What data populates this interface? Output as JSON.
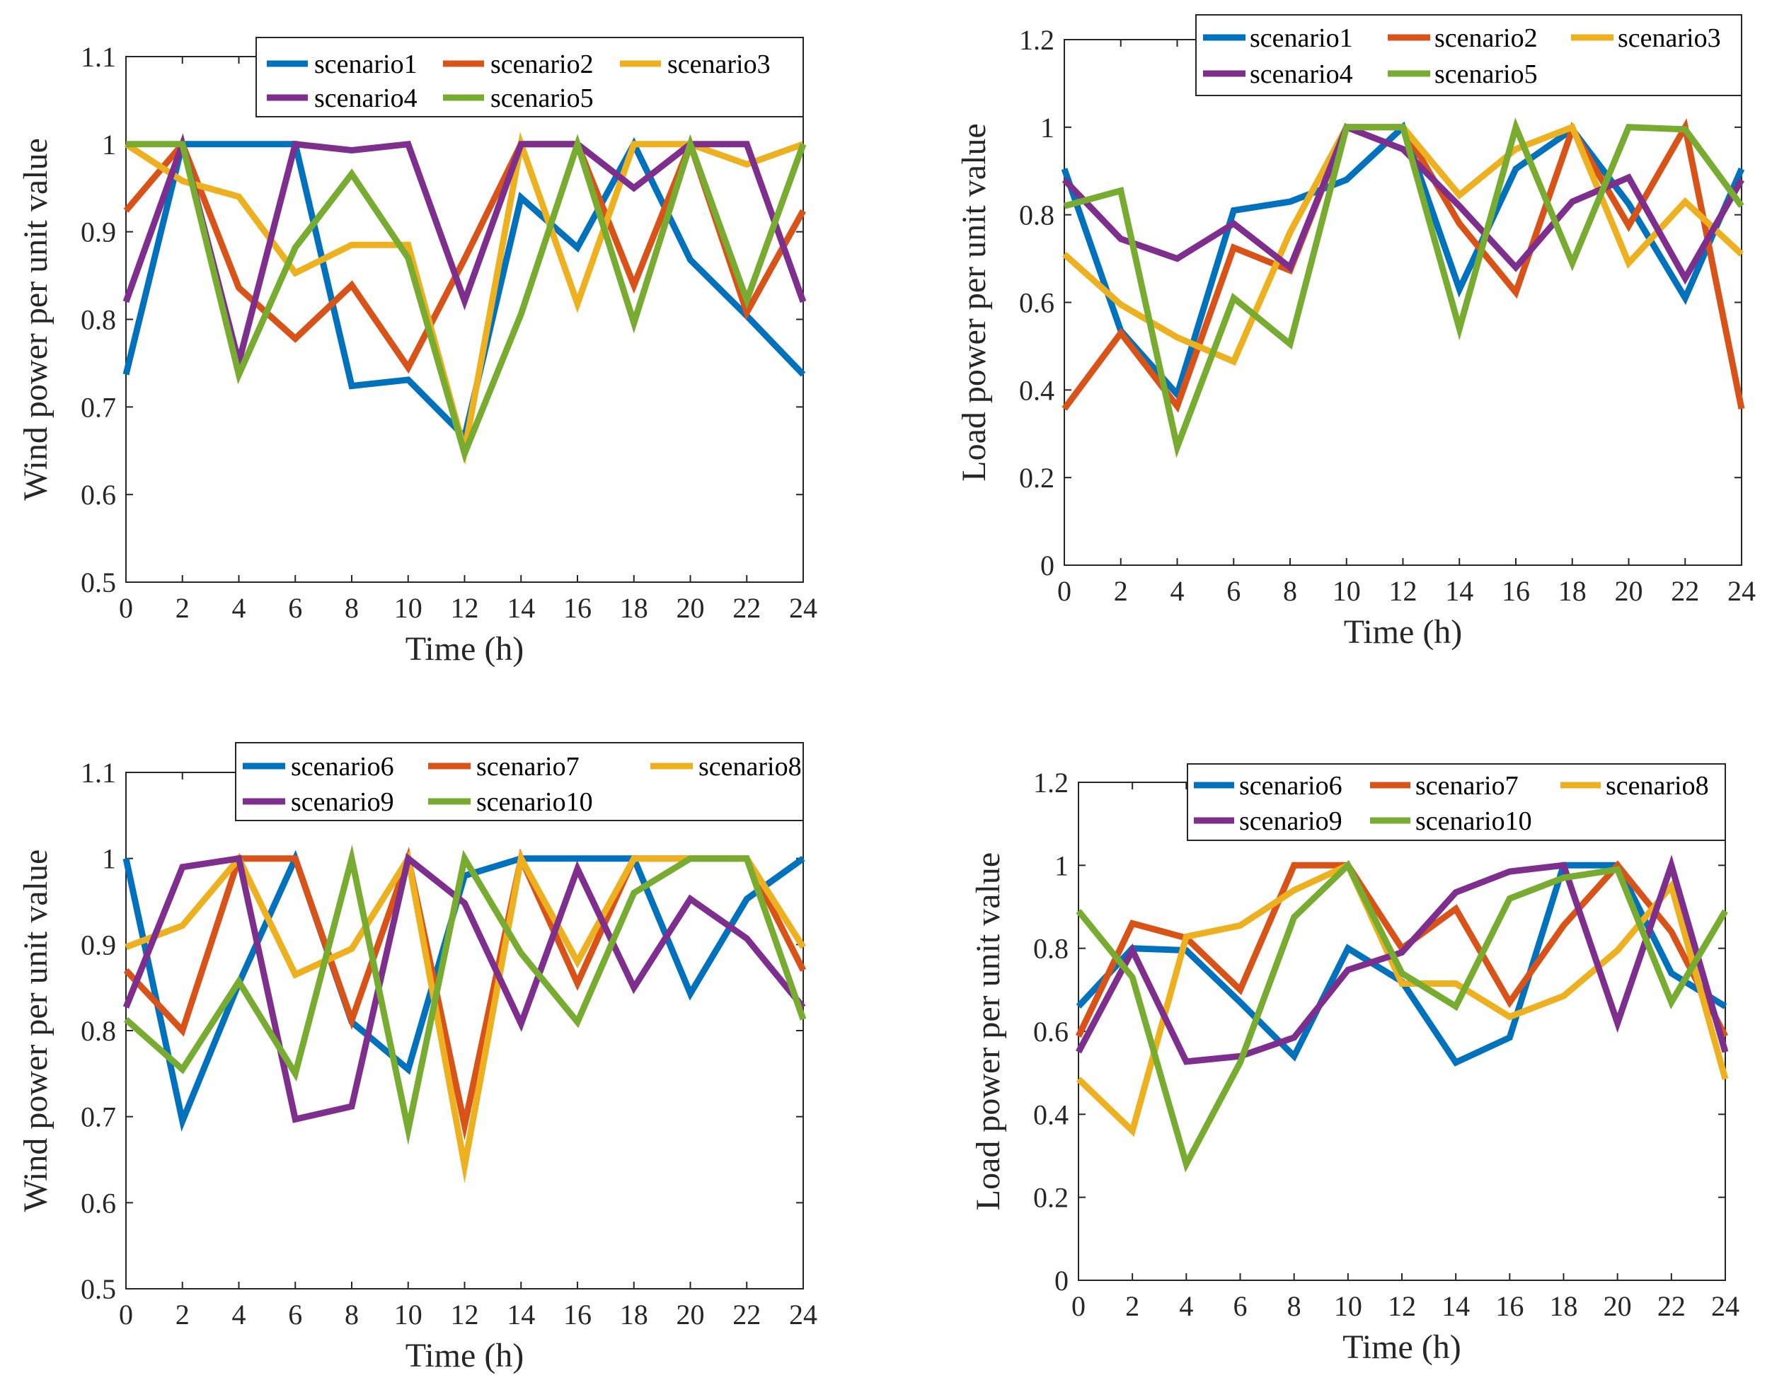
{
  "chart_data": [
    {
      "type": "line",
      "id": "wind-1",
      "xlabel": "Time (h)",
      "ylabel": "Wind power per unit value",
      "x": [
        0,
        2,
        4,
        6,
        8,
        10,
        12,
        14,
        16,
        18,
        20,
        22,
        24
      ],
      "xticks": [
        0,
        2,
        4,
        6,
        8,
        10,
        12,
        14,
        16,
        18,
        20,
        22,
        24
      ],
      "xlim": [
        0,
        24
      ],
      "ylim": [
        0.5,
        1.1
      ],
      "yticks": [
        0.5,
        0.6,
        0.7,
        0.8,
        0.9,
        1,
        1.1
      ],
      "legend_position": "top-right",
      "series": [
        {
          "name": "scenario1",
          "color": "#0072BD",
          "values": [
            0.737,
            1.0,
            1.0,
            1.0,
            0.724,
            0.731,
            0.666,
            0.939,
            0.882,
            1.0,
            0.868,
            0.804,
            0.737
          ]
        },
        {
          "name": "scenario2",
          "color": "#D95319",
          "values": [
            0.924,
            1.0,
            0.836,
            0.778,
            0.839,
            0.745,
            0.869,
            1.0,
            1.0,
            0.839,
            1.0,
            0.808,
            0.924
          ]
        },
        {
          "name": "scenario3",
          "color": "#EDB120",
          "values": [
            1.0,
            0.958,
            0.94,
            0.853,
            0.885,
            0.885,
            0.65,
            1.0,
            0.818,
            1.0,
            1.0,
            0.977,
            1.0
          ]
        },
        {
          "name": "scenario4",
          "color": "#7E2F8E",
          "values": [
            0.82,
            1.0,
            0.751,
            1.0,
            0.993,
            1.0,
            0.821,
            1.0,
            1.0,
            0.95,
            1.0,
            1.0,
            0.82
          ]
        },
        {
          "name": "scenario5",
          "color": "#77AC30",
          "values": [
            1.0,
            1.0,
            0.737,
            0.882,
            0.966,
            0.87,
            0.647,
            0.806,
            1.0,
            0.796,
            1.0,
            0.822,
            1.0
          ]
        }
      ]
    },
    {
      "type": "line",
      "id": "load-1",
      "xlabel": "Time (h)",
      "ylabel": "Load power per unit value",
      "x": [
        0,
        2,
        4,
        6,
        8,
        10,
        12,
        14,
        16,
        18,
        20,
        22,
        24
      ],
      "xticks": [
        0,
        2,
        4,
        6,
        8,
        10,
        12,
        14,
        16,
        18,
        20,
        22,
        24
      ],
      "xlim": [
        0,
        24
      ],
      "ylim": [
        0,
        1.2
      ],
      "yticks": [
        0,
        0.2,
        0.4,
        0.6,
        0.8,
        1,
        1.2
      ],
      "legend_position": "top-right",
      "series": [
        {
          "name": "scenario1",
          "color": "#0072BD",
          "values": [
            0.905,
            0.535,
            0.39,
            0.81,
            0.83,
            0.88,
            1.0,
            0.63,
            0.905,
            0.995,
            0.825,
            0.61,
            0.905
          ]
        },
        {
          "name": "scenario2",
          "color": "#D95319",
          "values": [
            0.357,
            0.53,
            0.363,
            0.725,
            0.673,
            1.0,
            1.0,
            0.78,
            0.623,
            0.995,
            0.775,
            1.0,
            0.357
          ]
        },
        {
          "name": "scenario3",
          "color": "#EDB120",
          "values": [
            0.71,
            0.595,
            0.52,
            0.465,
            0.76,
            1.0,
            1.0,
            0.845,
            0.95,
            1.0,
            0.69,
            0.83,
            0.71
          ]
        },
        {
          "name": "scenario4",
          "color": "#7E2F8E",
          "values": [
            0.88,
            0.745,
            0.7,
            0.78,
            0.68,
            1.0,
            0.95,
            0.82,
            0.68,
            0.83,
            0.885,
            0.655,
            0.88
          ]
        },
        {
          "name": "scenario5",
          "color": "#77AC30",
          "values": [
            0.82,
            0.855,
            0.27,
            0.61,
            0.505,
            1.0,
            1.0,
            0.54,
            1.0,
            0.69,
            1.0,
            0.995,
            0.82
          ]
        }
      ]
    },
    {
      "type": "line",
      "id": "wind-2",
      "xlabel": "Time (h)",
      "ylabel": "Wind power per unit value",
      "x": [
        0,
        2,
        4,
        6,
        8,
        10,
        12,
        14,
        16,
        18,
        20,
        22,
        24
      ],
      "xticks": [
        0,
        2,
        4,
        6,
        8,
        10,
        12,
        14,
        16,
        18,
        20,
        22,
        24
      ],
      "xlim": [
        0,
        24
      ],
      "ylim": [
        0.5,
        1.1
      ],
      "yticks": [
        0.5,
        0.6,
        0.7,
        0.8,
        0.9,
        1,
        1.1
      ],
      "legend_position": "top-right",
      "series": [
        {
          "name": "scenario6",
          "color": "#0072BD",
          "values": [
            1.0,
            0.695,
            0.855,
            1.0,
            0.81,
            0.755,
            0.98,
            1.0,
            1.0,
            1.0,
            0.843,
            0.953,
            1.0
          ]
        },
        {
          "name": "scenario7",
          "color": "#D95319",
          "values": [
            0.87,
            0.8,
            1.0,
            1.0,
            0.812,
            1.0,
            0.69,
            1.0,
            0.855,
            1.0,
            1.0,
            1.0,
            0.87
          ]
        },
        {
          "name": "scenario8",
          "color": "#EDB120",
          "values": [
            0.897,
            0.922,
            1.0,
            0.865,
            0.895,
            1.0,
            0.643,
            1.0,
            0.88,
            1.0,
            1.0,
            1.0,
            0.897
          ]
        },
        {
          "name": "scenario9",
          "color": "#7E2F8E",
          "values": [
            0.827,
            0.99,
            1.0,
            0.697,
            0.712,
            1.0,
            0.948,
            0.808,
            0.988,
            0.85,
            0.953,
            0.907,
            0.827
          ]
        },
        {
          "name": "scenario10",
          "color": "#77AC30",
          "values": [
            0.813,
            0.755,
            0.857,
            0.75,
            1.0,
            0.685,
            1.0,
            0.89,
            0.81,
            0.96,
            1.0,
            1.0,
            0.813
          ]
        }
      ]
    },
    {
      "type": "line",
      "id": "load-2",
      "xlabel": "Time (h)",
      "ylabel": "Load power per unit value",
      "x": [
        0,
        2,
        4,
        6,
        8,
        10,
        12,
        14,
        16,
        18,
        20,
        22,
        24
      ],
      "xticks": [
        0,
        2,
        4,
        6,
        8,
        10,
        12,
        14,
        16,
        18,
        20,
        22,
        24
      ],
      "xlim": [
        0,
        24
      ],
      "ylim": [
        0,
        1.2
      ],
      "yticks": [
        0,
        0.2,
        0.4,
        0.6,
        0.8,
        1,
        1.2
      ],
      "legend_position": "top-right",
      "series": [
        {
          "name": "scenario6",
          "color": "#0072BD",
          "values": [
            0.66,
            0.8,
            0.795,
            0.67,
            0.54,
            0.8,
            0.72,
            0.525,
            0.585,
            1.0,
            1.0,
            0.74,
            0.66
          ]
        },
        {
          "name": "scenario7",
          "color": "#D95319",
          "values": [
            0.588,
            0.86,
            0.825,
            0.7,
            1.0,
            1.0,
            0.8,
            0.895,
            0.67,
            0.855,
            1.0,
            0.84,
            0.588
          ]
        },
        {
          "name": "scenario8",
          "color": "#EDB120",
          "values": [
            0.485,
            0.36,
            0.828,
            0.855,
            0.94,
            1.0,
            0.715,
            0.715,
            0.635,
            0.685,
            0.795,
            0.95,
            0.485
          ]
        },
        {
          "name": "scenario9",
          "color": "#7E2F8E",
          "values": [
            0.55,
            0.795,
            0.527,
            0.54,
            0.585,
            0.748,
            0.79,
            0.935,
            0.985,
            1.0,
            0.62,
            1.0,
            0.55
          ]
        },
        {
          "name": "scenario10",
          "color": "#77AC30",
          "values": [
            0.89,
            0.73,
            0.28,
            0.525,
            0.875,
            1.0,
            0.74,
            0.66,
            0.92,
            0.97,
            0.99,
            0.67,
            0.89
          ]
        }
      ]
    }
  ]
}
